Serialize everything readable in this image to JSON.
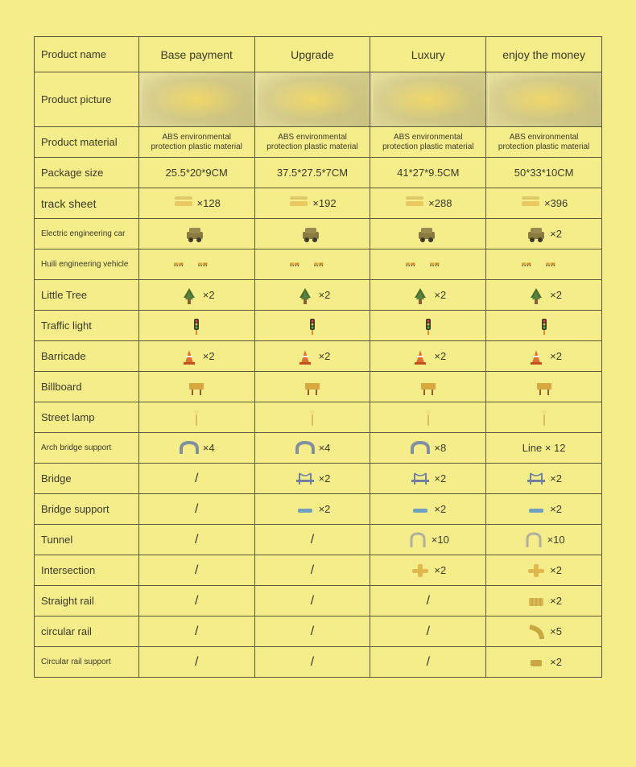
{
  "background_color": "#f5ed8a",
  "border_color": "#5a5a3a",
  "text_color": "#3a3a2a",
  "table": {
    "headers": [
      "Product name",
      "Base payment",
      "Upgrade",
      "Luxury",
      "enjoy the money"
    ],
    "rows": [
      {
        "label": "Product picture",
        "label_size": "normal",
        "type": "picture",
        "cells": [
          "",
          "",
          "",
          ""
        ]
      },
      {
        "label": "Product material",
        "label_size": "normal",
        "type": "text-small",
        "cells": [
          "ABS environmental protection plastic material",
          "ABS environmental protection plastic material",
          "ABS environmental protection plastic material",
          "ABS environmental protection plastic material"
        ]
      },
      {
        "label": "Package size",
        "label_size": "normal",
        "type": "text",
        "cells": [
          "25.5*20*9CM",
          "37.5*27.5*7CM",
          "41*27*9.5CM",
          "50*33*10CM"
        ]
      },
      {
        "label": "track sheet",
        "label_size": "medium",
        "type": "icon-count",
        "icon": "track",
        "cells": [
          "×128",
          "×192",
          "×288",
          "×396"
        ]
      },
      {
        "label": "Electric engineering car",
        "label_size": "small",
        "type": "icon-count",
        "icon": "car",
        "cells": [
          "",
          "",
          "",
          "×2"
        ]
      },
      {
        "label": "Huili engineering vehicle",
        "label_size": "small",
        "type": "vehicles",
        "cells": [
          "",
          "",
          "",
          ""
        ]
      },
      {
        "label": "Little Tree",
        "label_size": "normal",
        "type": "icon-count",
        "icon": "tree",
        "cells": [
          "×2",
          "×2",
          "×2",
          "×2"
        ]
      },
      {
        "label": "Traffic light",
        "label_size": "normal",
        "type": "icon-only",
        "icon": "trafficlight",
        "cells": [
          "",
          "",
          "",
          ""
        ]
      },
      {
        "label": "Barricade",
        "label_size": "normal",
        "type": "icon-count",
        "icon": "cone",
        "cells": [
          "×2",
          "×2",
          "×2",
          "×2"
        ]
      },
      {
        "label": "Billboard",
        "label_size": "normal",
        "type": "icon-only",
        "icon": "billboard",
        "cells": [
          "",
          "",
          "",
          ""
        ]
      },
      {
        "label": "Street lamp",
        "label_size": "normal",
        "type": "icon-only",
        "icon": "lamp",
        "cells": [
          "",
          "",
          "",
          ""
        ]
      },
      {
        "label": "Arch bridge support",
        "label_size": "small",
        "type": "icon-count",
        "icon": "arch",
        "cells": [
          "×4",
          "×4",
          "×8",
          "Line × 12"
        ]
      },
      {
        "label": "Bridge",
        "label_size": "normal",
        "type": "icon-count-slash",
        "icon": "bridge",
        "cells": [
          "/",
          "×2",
          "×2",
          "×2"
        ]
      },
      {
        "label": "Bridge support",
        "label_size": "normal",
        "type": "icon-count-slash",
        "icon": "bsupport",
        "cells": [
          "/",
          "×2",
          "×2",
          "×2"
        ]
      },
      {
        "label": "Tunnel",
        "label_size": "normal",
        "type": "icon-count-slash",
        "icon": "tunnel",
        "cells": [
          "/",
          "/",
          "×10",
          "×10"
        ]
      },
      {
        "label": "Intersection",
        "label_size": "normal",
        "type": "icon-count-slash",
        "icon": "intersection",
        "cells": [
          "/",
          "/",
          "×2",
          "×2"
        ]
      },
      {
        "label": "Straight rail",
        "label_size": "normal",
        "type": "icon-count-slash",
        "icon": "srail",
        "cells": [
          "/",
          "/",
          "/",
          "×2"
        ]
      },
      {
        "label": "circular rail",
        "label_size": "normal",
        "type": "icon-count-slash",
        "icon": "crail",
        "cells": [
          "/",
          "/",
          "/",
          "×5"
        ]
      },
      {
        "label": "Circular rail support",
        "label_size": "small",
        "type": "icon-count-slash",
        "icon": "csupport",
        "cells": [
          "/",
          "/",
          "/",
          "×2"
        ]
      }
    ]
  },
  "icons": {
    "track": {
      "fill": "#e8c860",
      "type": "track"
    },
    "car": {
      "fill": "#8a7a40",
      "type": "car"
    },
    "tree": {
      "fill": "#4a7030",
      "type": "tree"
    },
    "trafficlight": {
      "fill": "#d89030",
      "type": "trafficlight"
    },
    "cone": {
      "fill": "#e07030",
      "type": "cone"
    },
    "billboard": {
      "fill": "#d8a840",
      "type": "billboard"
    },
    "lamp": {
      "fill": "#d8c060",
      "type": "lamp"
    },
    "arch": {
      "fill": "#8090a0",
      "type": "arch"
    },
    "bridge": {
      "fill": "#7080a0",
      "type": "bridge"
    },
    "bsupport": {
      "fill": "#70a0c0",
      "type": "bsupport"
    },
    "tunnel": {
      "fill": "#b0b0a0",
      "type": "tunnel"
    },
    "intersection": {
      "fill": "#e0b850",
      "type": "intersection"
    },
    "srail": {
      "fill": "#d8b850",
      "type": "srail"
    },
    "crail": {
      "fill": "#c8a840",
      "type": "crail"
    },
    "csupport": {
      "fill": "#c8a840",
      "type": "csupport"
    }
  }
}
